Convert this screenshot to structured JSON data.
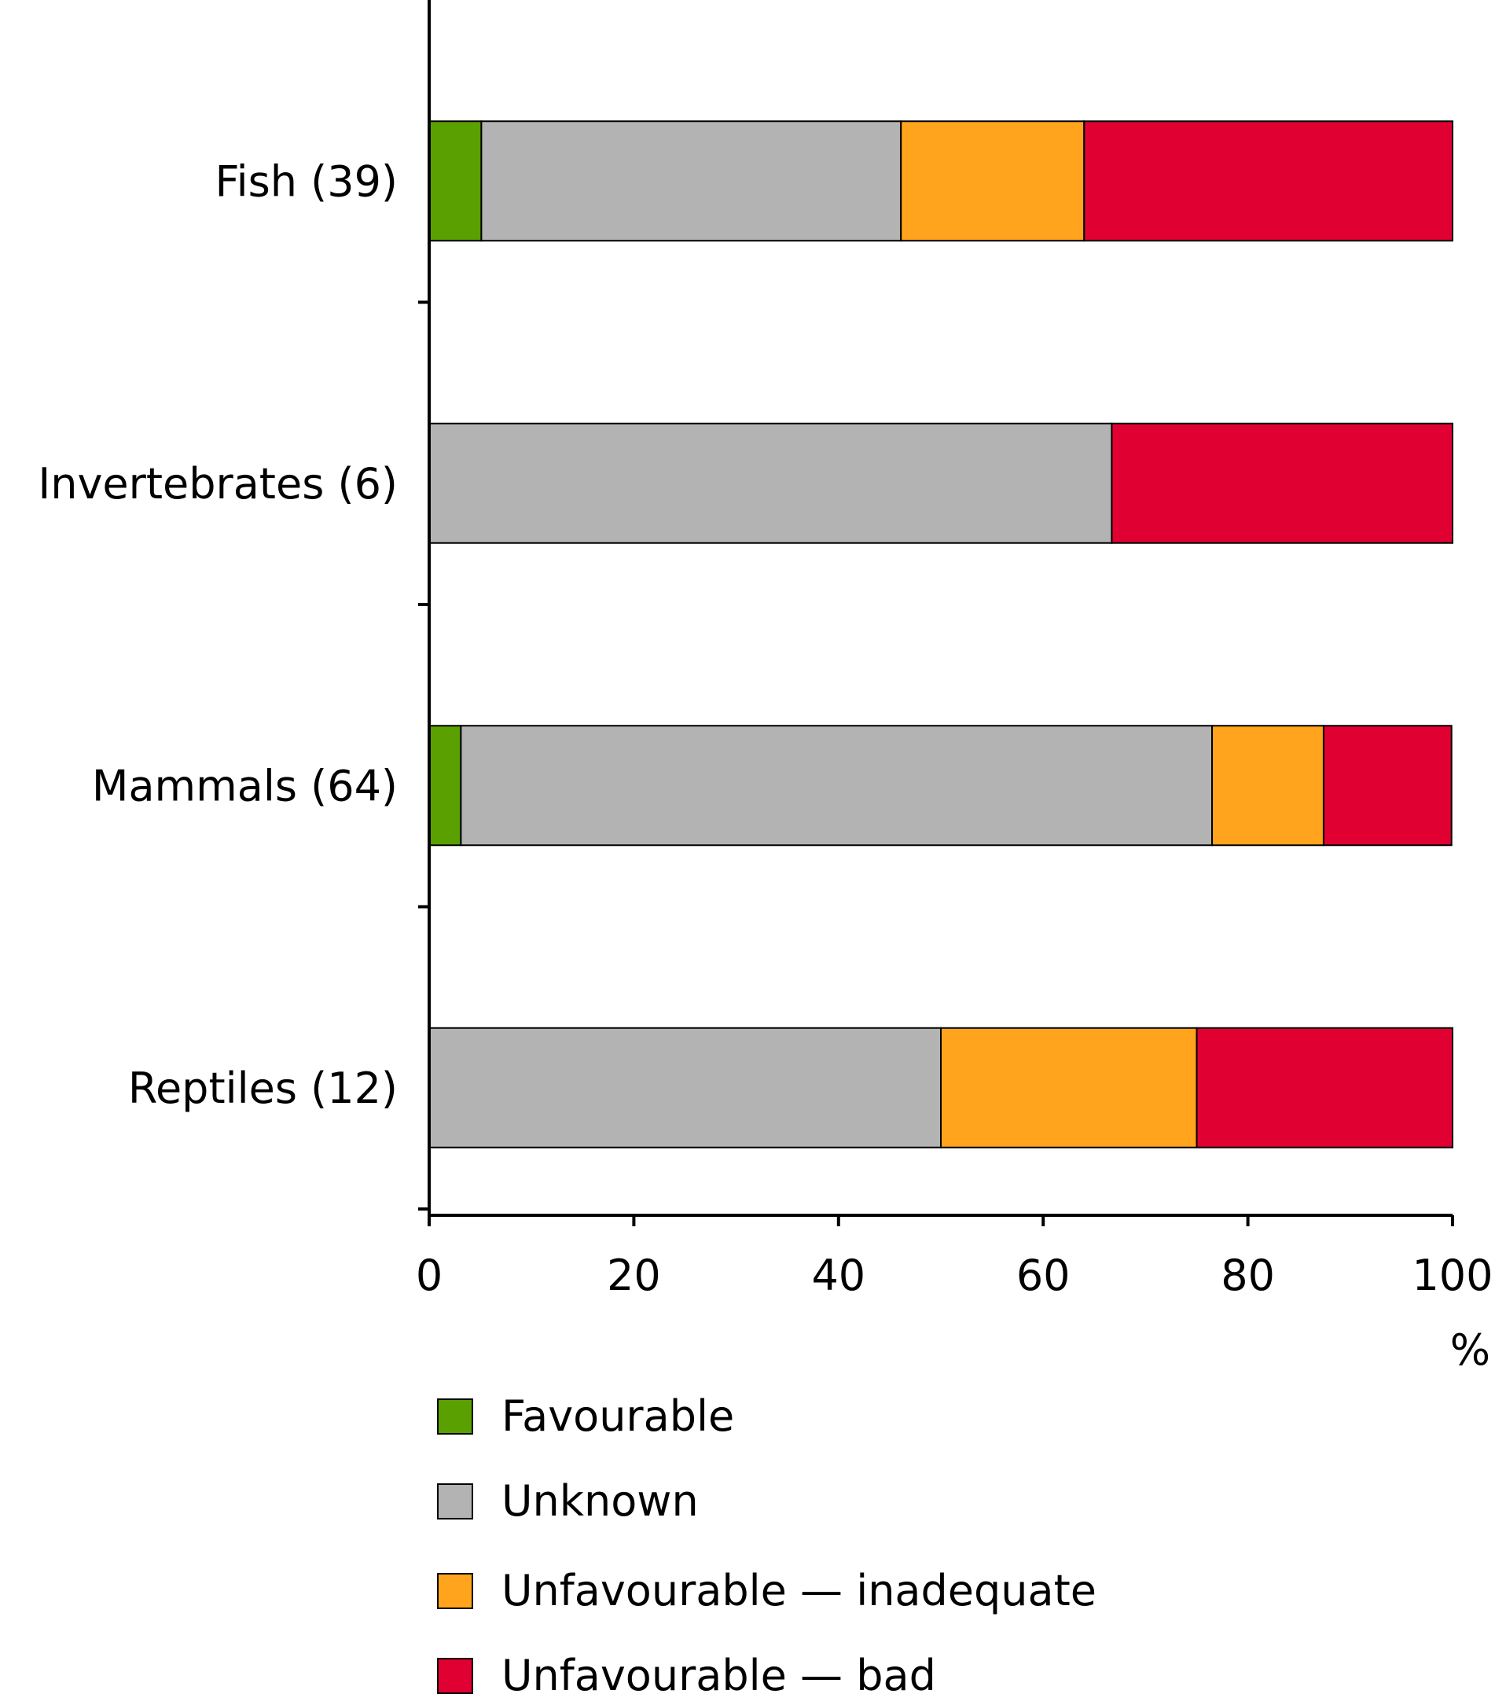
{
  "chart_data": {
    "type": "bar",
    "orientation": "horizontal",
    "stacked": true,
    "categories": [
      "Fish (39)",
      "Invertebrates (6)",
      "Mammals (64)",
      "Reptiles (12)"
    ],
    "series": [
      {
        "name": "Favourable",
        "color": "#5aa000",
        "values": [
          5.1,
          0,
          3.1,
          0
        ]
      },
      {
        "name": "Unknown",
        "color": "#b3b3b3",
        "values": [
          41.0,
          66.7,
          73.4,
          50.0
        ]
      },
      {
        "name": "Unfavourable — inadequate",
        "color": "#ffa41c",
        "values": [
          17.9,
          0,
          10.9,
          25.0
        ]
      },
      {
        "name": "Unfavourable — bad",
        "color": "#e10032",
        "values": [
          36.0,
          33.3,
          12.5,
          25.0
        ]
      }
    ],
    "xlim": [
      0,
      100
    ],
    "xticks": [
      "0",
      "20",
      "40",
      "60",
      "80",
      "100"
    ],
    "xlabel": "%",
    "grid": false,
    "legend_position": "bottom"
  }
}
